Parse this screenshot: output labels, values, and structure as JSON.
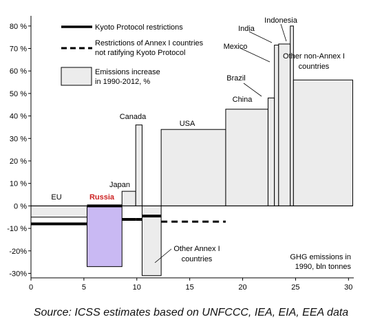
{
  "chart_data": {
    "type": "bar",
    "subtype": "variable-width-bar",
    "x_axis": {
      "label_lines": [
        "GHG emissions in",
        "1990, bln tonnes"
      ],
      "min": 0,
      "max": 30.5,
      "ticks": [
        0,
        5,
        10,
        15,
        20,
        25,
        30
      ],
      "tick_labels": [
        "0",
        "5",
        "10",
        "15",
        "20",
        "25",
        "30"
      ]
    },
    "y_axis": {
      "min": -32,
      "max": 83,
      "ticks": [
        -30,
        -20,
        -10,
        0,
        10,
        20,
        30,
        40,
        50,
        60,
        70,
        80
      ],
      "tick_labels": [
        "-30%",
        "-20%",
        "-10 %",
        "0 %",
        "10 %",
        "20 %",
        "30 %",
        "40 %",
        "50 %",
        "60 %",
        "70 %",
        "80 %"
      ]
    },
    "grid": false,
    "legend": {
      "placement": "top-left",
      "entries": [
        {
          "style": "solid-line",
          "label_lines": [
            "Kyoto Protocol restrictions"
          ]
        },
        {
          "style": "dashed-line",
          "label_lines": [
            "Restrictions of Annex I countries",
            "not ratifying Kyoto Protocol"
          ]
        },
        {
          "style": "box",
          "label_lines": [
            "Emissions increase",
            "in 1990-2012, %"
          ]
        }
      ]
    },
    "bars": [
      {
        "label": "EU",
        "x_start": 0.0,
        "x_end": 5.3,
        "value": -5,
        "kyoto_target": -8,
        "highlight": false
      },
      {
        "label": "Russia",
        "x_start": 5.3,
        "x_end": 8.6,
        "value": -27,
        "kyoto_target": 0,
        "highlight": true
      },
      {
        "label": "Japan",
        "x_start": 8.6,
        "x_end": 9.9,
        "value": 6.5,
        "kyoto_target": -6,
        "highlight": false
      },
      {
        "label": "Canada",
        "x_start": 9.9,
        "x_end": 10.5,
        "value": 36,
        "kyoto_target": -6,
        "highlight": false
      },
      {
        "label": "Other Annex I countries",
        "x_start": 10.5,
        "x_end": 12.3,
        "value": -31,
        "kyoto_target": -4.5,
        "highlight": false
      },
      {
        "label": "USA",
        "x_start": 12.3,
        "x_end": 18.4,
        "value": 34,
        "non_ratifying_target": -7,
        "highlight": false
      },
      {
        "label": "China",
        "x_start": 18.4,
        "x_end": 22.4,
        "value": 43,
        "highlight": false
      },
      {
        "label": "Brazil",
        "x_start": 22.4,
        "x_end": 23.0,
        "value": 48,
        "highlight": false
      },
      {
        "label": "Mexico",
        "x_start": 23.0,
        "x_end": 23.4,
        "value": 71.5,
        "highlight": false
      },
      {
        "label": "India",
        "x_start": 23.4,
        "x_end": 24.5,
        "value": 72,
        "highlight": false
      },
      {
        "label": "Indonesia",
        "x_start": 24.5,
        "x_end": 24.8,
        "value": 80,
        "highlight": false
      },
      {
        "label": "Other non-Annex I countries",
        "x_start": 24.8,
        "x_end": 30.4,
        "value": 56,
        "highlight": false
      }
    ],
    "colors": {
      "bar_fill": "#ececec",
      "highlight_fill": "#c9b9f3",
      "highlight_label": "#cc2222",
      "stroke": "#000000"
    }
  },
  "source": "Source: ICSS estimates based on UNFCCC, IEA, EIA, EEA data"
}
